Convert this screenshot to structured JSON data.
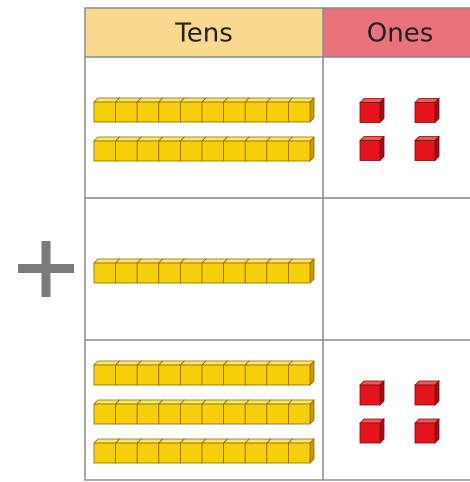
{
  "table": {
    "headers": [
      "Tens",
      "Ones"
    ],
    "rows": [
      {
        "tens": 2,
        "ones": 4
      },
      {
        "tens": 1,
        "ones": 0
      },
      {
        "tens": 3,
        "ones": 4
      }
    ]
  }
}
